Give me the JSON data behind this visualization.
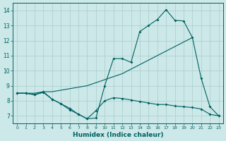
{
  "bg_color": "#cce8e8",
  "line_color": "#006060",
  "grid_color": "#aacccc",
  "xlabel": "Humidex (Indice chaleur)",
  "ylim": [
    6.5,
    14.5
  ],
  "xlim": [
    -0.5,
    23.5
  ],
  "yticks": [
    7,
    8,
    9,
    10,
    11,
    12,
    13,
    14
  ],
  "xticks": [
    0,
    1,
    2,
    3,
    4,
    5,
    6,
    7,
    8,
    9,
    10,
    11,
    12,
    13,
    14,
    15,
    16,
    17,
    18,
    19,
    20,
    21,
    22,
    23
  ],
  "line1_x": [
    0,
    1,
    2,
    3,
    4,
    5,
    6,
    7,
    8,
    9,
    10,
    11,
    12,
    13,
    14,
    15,
    16,
    17,
    18,
    19,
    20
  ],
  "line1_y": [
    8.5,
    8.5,
    8.5,
    8.6,
    8.6,
    8.7,
    8.8,
    8.9,
    9.0,
    9.2,
    9.4,
    9.6,
    9.8,
    10.1,
    10.4,
    10.7,
    11.0,
    11.3,
    11.6,
    11.9,
    12.2
  ],
  "line2_x": [
    0,
    1,
    2,
    3,
    4,
    5,
    6,
    7,
    8,
    9,
    10,
    11,
    12,
    13,
    14,
    15,
    16,
    17,
    18,
    19,
    20,
    21,
    22,
    23
  ],
  "line2_y": [
    8.5,
    8.5,
    8.4,
    8.6,
    8.1,
    7.8,
    7.5,
    7.1,
    6.8,
    6.85,
    9.0,
    10.8,
    10.8,
    10.55,
    12.6,
    13.0,
    13.4,
    14.05,
    13.35,
    13.3,
    12.2,
    9.5,
    7.6,
    7.0
  ],
  "line3_x": [
    0,
    1,
    2,
    3,
    4,
    5,
    6,
    7,
    8,
    9,
    10,
    11,
    12,
    13,
    14,
    15,
    16,
    17,
    18,
    19,
    20,
    21,
    22,
    23
  ],
  "line3_y": [
    8.5,
    8.5,
    8.4,
    8.55,
    8.1,
    7.8,
    7.4,
    7.1,
    6.8,
    7.35,
    8.0,
    8.2,
    8.15,
    8.05,
    7.95,
    7.85,
    7.75,
    7.75,
    7.65,
    7.6,
    7.55,
    7.45,
    7.1,
    7.0
  ]
}
